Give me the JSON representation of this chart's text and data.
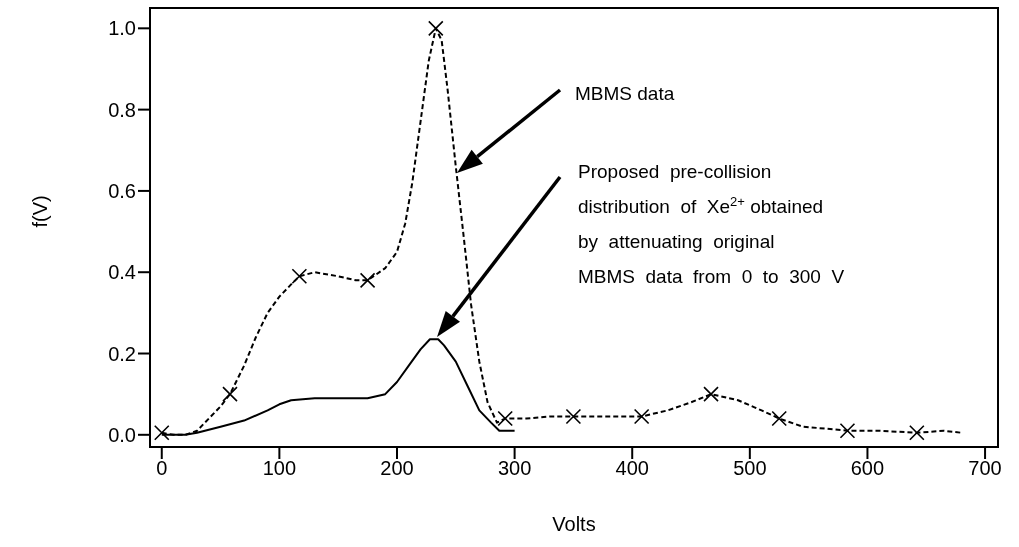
{
  "chart_data": {
    "type": "line",
    "xlabel": "Volts",
    "ylabel": "f(V)",
    "xlim": [
      -10,
      711
    ],
    "ylim": [
      -0.03,
      1.05
    ],
    "xticks": [
      0,
      100,
      200,
      300,
      400,
      500,
      600,
      700
    ],
    "yticks": [
      {
        "value": 0,
        "label": "0.0"
      },
      {
        "value": 0.2,
        "label": "0.2"
      },
      {
        "value": 0.4,
        "label": "0.4"
      },
      {
        "value": 0.6,
        "label": "0.6"
      },
      {
        "value": 0.8,
        "label": "0.8"
      },
      {
        "value": 1,
        "label": "1.0"
      }
    ],
    "series": [
      {
        "line_style": "dashed",
        "color": "#000000",
        "x": [
          0,
          10,
          20,
          30,
          40,
          50,
          58,
          70,
          80,
          90,
          100,
          110,
          117,
          130,
          150,
          165,
          175,
          190,
          200,
          207,
          213,
          220,
          227,
          233,
          238,
          243,
          250,
          257,
          263,
          270,
          277,
          285,
          292,
          310,
          330,
          350,
          380,
          408,
          430,
          450,
          467,
          490,
          510,
          525,
          545,
          565,
          583,
          610,
          642,
          665,
          680
        ],
        "values": [
          0.005,
          0,
          0,
          0.01,
          0.04,
          0.07,
          0.1,
          0.17,
          0.24,
          0.3,
          0.34,
          0.37,
          0.39,
          0.4,
          0.39,
          0.38,
          0.38,
          0.41,
          0.45,
          0.52,
          0.62,
          0.77,
          0.92,
          1.0,
          0.97,
          0.85,
          0.66,
          0.48,
          0.32,
          0.18,
          0.08,
          0.03,
          0.04,
          0.04,
          0.045,
          0.045,
          0.045,
          0.045,
          0.06,
          0.08,
          0.1,
          0.085,
          0.06,
          0.04,
          0.02,
          0.015,
          0.01,
          0.01,
          0.005,
          0.01,
          0.005
        ]
      },
      {
        "type": "scatter",
        "marker": "cross",
        "color": "#000000",
        "x": [
          0,
          58,
          117,
          175,
          233,
          292,
          350,
          408,
          467,
          525,
          583,
          642
        ],
        "values": [
          0.005,
          0.1,
          0.39,
          0.38,
          1.0,
          0.04,
          0.045,
          0.045,
          0.1,
          0.04,
          0.01,
          0.005
        ]
      },
      {
        "line_style": "solid",
        "color": "#000000",
        "x": [
          0,
          20,
          30,
          50,
          70,
          90,
          100,
          110,
          130,
          150,
          175,
          190,
          200,
          210,
          220,
          228,
          235,
          240,
          250,
          260,
          270,
          280,
          287,
          300
        ],
        "values": [
          0,
          0,
          0.005,
          0.02,
          0.035,
          0.06,
          0.075,
          0.085,
          0.09,
          0.09,
          0.09,
          0.1,
          0.13,
          0.17,
          0.21,
          0.235,
          0.235,
          0.22,
          0.18,
          0.12,
          0.06,
          0.03,
          0.01,
          0.01
        ]
      }
    ],
    "annotations": [
      "MBMS data",
      "Proposed  pre-collision\ndistribution  of  Xe$^{2+}$ obtained\nby  attenuating  original\nMBMS  data  from  0  to  300  V"
    ]
  }
}
